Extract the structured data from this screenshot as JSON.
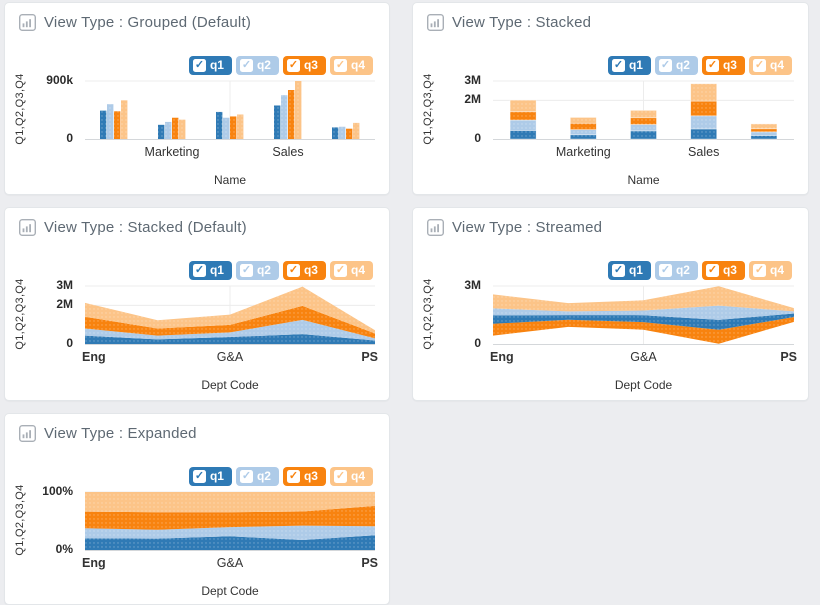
{
  "page": {
    "background": "#ecedf0",
    "panel_background": "#ffffff"
  },
  "icons": {
    "check_glyph": "✓",
    "panel_icon": "bar-chart-icon"
  },
  "legend": {
    "position": "top-right",
    "items": [
      {
        "label": "q1",
        "checked": true,
        "color": "#2f7ab5"
      },
      {
        "label": "q2",
        "checked": true,
        "color": "#aecbe8"
      },
      {
        "label": "q3",
        "checked": true,
        "color": "#f8830f"
      },
      {
        "label": "q4",
        "checked": true,
        "color": "#fcc488"
      }
    ]
  },
  "chart_data": [
    {
      "panel_title": "View Type : Grouped (Default)",
      "type": "bar",
      "variant": "grouped",
      "categories": [
        "",
        "Marketing",
        "",
        "Sales",
        ""
      ],
      "series": [
        {
          "name": "q1",
          "values": [
            440000,
            220000,
            420000,
            520000,
            180000
          ]
        },
        {
          "name": "q2",
          "values": [
            540000,
            265000,
            330000,
            680000,
            190000
          ]
        },
        {
          "name": "q3",
          "values": [
            430000,
            330000,
            350000,
            760000,
            160000
          ]
        },
        {
          "name": "q4",
          "values": [
            600000,
            300000,
            380000,
            900000,
            250000
          ]
        }
      ],
      "xlabel": "Name",
      "ylabel": "Q1,Q2,Q3,Q4",
      "ylim": [
        0,
        900000
      ],
      "yticks": [
        {
          "label": "900k",
          "value": 900000
        },
        {
          "label": "0",
          "value": 0
        }
      ],
      "grid": true
    },
    {
      "panel_title": "View Type : Stacked",
      "type": "bar",
      "variant": "stacked-bar",
      "categories": [
        "",
        "Marketing",
        "",
        "Sales",
        ""
      ],
      "series": [
        {
          "name": "q1",
          "values": [
            440000,
            220000,
            420000,
            520000,
            180000
          ]
        },
        {
          "name": "q2",
          "values": [
            540000,
            265000,
            330000,
            680000,
            190000
          ]
        },
        {
          "name": "q3",
          "values": [
            430000,
            330000,
            350000,
            760000,
            160000
          ]
        },
        {
          "name": "q4",
          "values": [
            600000,
            300000,
            380000,
            900000,
            250000
          ]
        }
      ],
      "xlabel": "Name",
      "ylabel": "Q1,Q2,Q3,Q4",
      "ylim": [
        0,
        3000000
      ],
      "yticks": [
        {
          "label": "3M",
          "value": 3000000
        },
        {
          "label": "2M",
          "value": 2000000
        },
        {
          "label": "0",
          "value": 0
        }
      ],
      "grid": true
    },
    {
      "panel_title": "View Type : Stacked (Default)",
      "type": "area",
      "variant": "stacked-area",
      "categories": [
        "Eng",
        "",
        "G&A",
        "",
        "PS"
      ],
      "series": [
        {
          "name": "q1",
          "values": [
            430000,
            240000,
            360000,
            510000,
            180000
          ]
        },
        {
          "name": "q2",
          "values": [
            370000,
            190000,
            240000,
            740000,
            110000
          ]
        },
        {
          "name": "q3",
          "values": [
            610000,
            370000,
            390000,
            720000,
            250000
          ]
        },
        {
          "name": "q4",
          "values": [
            720000,
            430000,
            530000,
            1000000,
            170000
          ]
        }
      ],
      "xlabel": "Dept Code",
      "ylabel": "Q1,Q2,Q3,Q4",
      "ylim": [
        0,
        3000000
      ],
      "yticks": [
        {
          "label": "3M",
          "value": 3000000
        },
        {
          "label": "2M",
          "value": 2000000
        },
        {
          "label": "0",
          "value": 0
        }
      ],
      "grid": true
    },
    {
      "panel_title": "View Type : Streamed",
      "type": "area",
      "variant": "stream",
      "categories": [
        "Eng",
        "",
        "G&A",
        "",
        "PS"
      ],
      "series": [
        {
          "name": "q1",
          "values": [
            430000,
            240000,
            360000,
            510000,
            180000
          ]
        },
        {
          "name": "q2",
          "values": [
            370000,
            190000,
            240000,
            740000,
            110000
          ]
        },
        {
          "name": "q3",
          "values": [
            610000,
            370000,
            390000,
            720000,
            250000
          ]
        },
        {
          "name": "q4",
          "values": [
            720000,
            430000,
            530000,
            1000000,
            170000
          ]
        }
      ],
      "xlabel": "Dept Code",
      "ylabel": "Q1,Q2,Q3,Q4",
      "ylim": [
        0,
        3000000
      ],
      "yticks": [
        {
          "label": "3M",
          "value": 3000000
        },
        {
          "label": "0",
          "value": 0
        }
      ],
      "grid": true
    },
    {
      "panel_title": "View Type : Expanded",
      "type": "area",
      "variant": "expanded",
      "categories": [
        "Eng",
        "",
        "G&A",
        "",
        "PS"
      ],
      "series": [
        {
          "name": "q1",
          "values": [
            430000,
            240000,
            360000,
            510000,
            180000
          ]
        },
        {
          "name": "q2",
          "values": [
            370000,
            190000,
            240000,
            740000,
            110000
          ]
        },
        {
          "name": "q3",
          "values": [
            610000,
            370000,
            390000,
            720000,
            250000
          ]
        },
        {
          "name": "q4",
          "values": [
            720000,
            430000,
            530000,
            1000000,
            170000
          ]
        }
      ],
      "xlabel": "Dept Code",
      "ylabel": "Q1,Q2,Q3,Q4",
      "ylim": [
        0,
        100
      ],
      "yticks": [
        {
          "label": "100%",
          "value": 100
        },
        {
          "label": "0%",
          "value": 0
        }
      ],
      "grid": true
    }
  ]
}
